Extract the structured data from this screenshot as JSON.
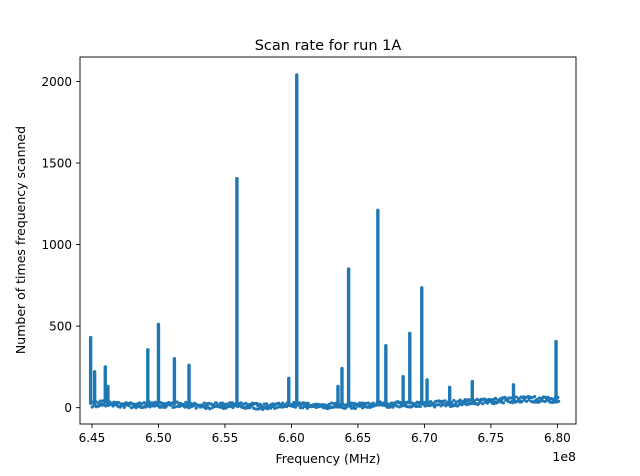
{
  "chart_data": {
    "type": "scatter",
    "title": "Scan rate for run 1A",
    "xlabel": "Frequency (MHz)",
    "ylabel": "Number of times frequency scanned",
    "x_offset_label": "1e8",
    "xlim": [
      6.441,
      6.814
    ],
    "ylim": [
      -100,
      2150
    ],
    "x_ticks": [
      6.45,
      6.5,
      6.55,
      6.6,
      6.65,
      6.7,
      6.75,
      6.8
    ],
    "x_tick_labels": [
      "6.45",
      "6.50",
      "6.55",
      "6.60",
      "6.65",
      "6.70",
      "6.75",
      "6.80"
    ],
    "y_ticks": [
      0,
      500,
      1000,
      1500,
      2000
    ],
    "y_tick_labels": [
      "0",
      "500",
      "1000",
      "1500",
      "2000"
    ],
    "grid": false,
    "marker_color": "#1f77b4",
    "baseline": [
      [
        6.449,
        30
      ],
      [
        6.46,
        35
      ],
      [
        6.48,
        25
      ],
      [
        6.5,
        30
      ],
      [
        6.52,
        25
      ],
      [
        6.54,
        20
      ],
      [
        6.56,
        25
      ],
      [
        6.58,
        15
      ],
      [
        6.6,
        25
      ],
      [
        6.62,
        20
      ],
      [
        6.64,
        20
      ],
      [
        6.66,
        25
      ],
      [
        6.68,
        30
      ],
      [
        6.7,
        30
      ],
      [
        6.72,
        35
      ],
      [
        6.74,
        45
      ],
      [
        6.76,
        55
      ],
      [
        6.78,
        60
      ],
      [
        6.801,
        55
      ]
    ],
    "spikes": [
      {
        "x": 6.449,
        "y": 430
      },
      {
        "x": 6.452,
        "y": 220
      },
      {
        "x": 6.46,
        "y": 250
      },
      {
        "x": 6.462,
        "y": 130
      },
      {
        "x": 6.492,
        "y": 355
      },
      {
        "x": 6.5,
        "y": 510
      },
      {
        "x": 6.512,
        "y": 300
      },
      {
        "x": 6.523,
        "y": 260
      },
      {
        "x": 6.559,
        "y": 1405
      },
      {
        "x": 6.598,
        "y": 180
      },
      {
        "x": 6.604,
        "y": 2040
      },
      {
        "x": 6.635,
        "y": 130
      },
      {
        "x": 6.638,
        "y": 240
      },
      {
        "x": 6.643,
        "y": 850
      },
      {
        "x": 6.665,
        "y": 1210
      },
      {
        "x": 6.671,
        "y": 380
      },
      {
        "x": 6.684,
        "y": 190
      },
      {
        "x": 6.689,
        "y": 455
      },
      {
        "x": 6.698,
        "y": 735
      },
      {
        "x": 6.702,
        "y": 170
      },
      {
        "x": 6.719,
        "y": 125
      },
      {
        "x": 6.736,
        "y": 160
      },
      {
        "x": 6.767,
        "y": 140
      },
      {
        "x": 6.799,
        "y": 405
      }
    ]
  }
}
